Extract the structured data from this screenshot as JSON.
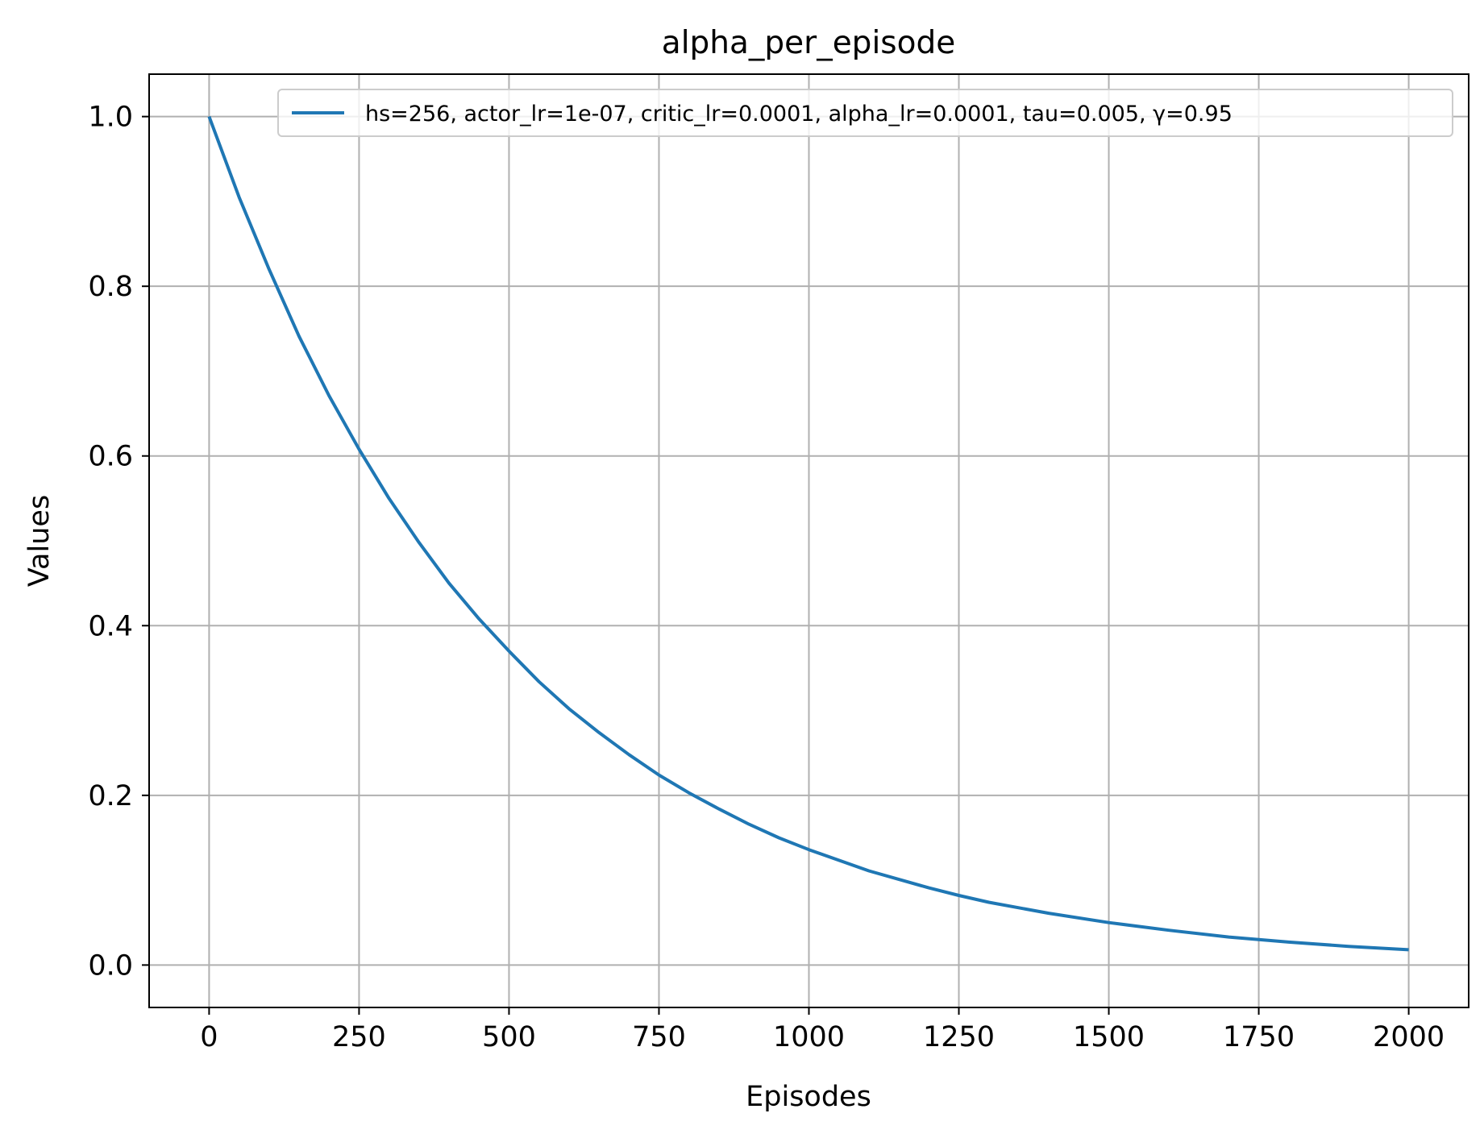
{
  "chart_data": {
    "type": "line",
    "title": "alpha_per_episode",
    "xlabel": "Episodes",
    "ylabel": "Values",
    "xlim": [
      -100,
      2100
    ],
    "ylim": [
      -0.05,
      1.05
    ],
    "xticks": [
      0,
      250,
      500,
      750,
      1000,
      1250,
      1500,
      1750,
      2000
    ],
    "xtick_labels": [
      "0",
      "250",
      "500",
      "750",
      "1000",
      "1250",
      "1500",
      "1750",
      "2000"
    ],
    "yticks": [
      0.0,
      0.2,
      0.4,
      0.6,
      0.8,
      1.0
    ],
    "ytick_labels": [
      "0.0",
      "0.2",
      "0.4",
      "0.6",
      "0.8",
      "1.0"
    ],
    "grid": true,
    "legend_position": "top-right",
    "series": [
      {
        "name": "hs=256, actor_lr=1e-07, critic_lr=0.0001, alpha_lr=0.0001, tau=0.005, γ=0.95",
        "color": "#1f77b4",
        "x": [
          0,
          50,
          100,
          150,
          200,
          250,
          300,
          350,
          400,
          450,
          500,
          550,
          600,
          650,
          700,
          750,
          800,
          850,
          900,
          950,
          1000,
          1100,
          1200,
          1250,
          1300,
          1400,
          1500,
          1600,
          1700,
          1750,
          1800,
          1900,
          2000
        ],
        "y": [
          1.0,
          0.905,
          0.82,
          0.741,
          0.671,
          0.608,
          0.55,
          0.498,
          0.45,
          0.408,
          0.37,
          0.334,
          0.302,
          0.274,
          0.248,
          0.224,
          0.203,
          0.184,
          0.166,
          0.15,
          0.136,
          0.111,
          0.091,
          0.082,
          0.074,
          0.061,
          0.05,
          0.041,
          0.033,
          0.03,
          0.027,
          0.022,
          0.018
        ]
      }
    ]
  }
}
